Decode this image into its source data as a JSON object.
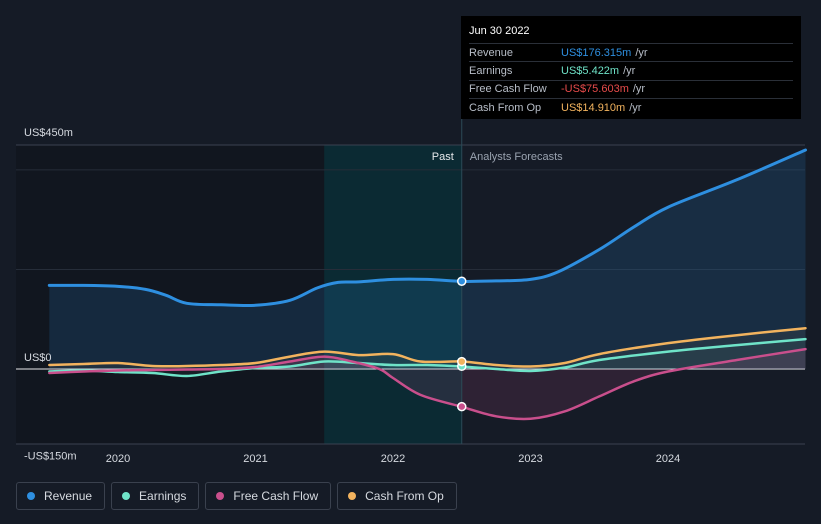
{
  "tooltip": {
    "date": "Jun 30 2022",
    "rows": [
      {
        "label": "Revenue",
        "value": "US$176.315m",
        "unit": "/yr",
        "color": "#2e8fe0"
      },
      {
        "label": "Earnings",
        "value": "US$5.422m",
        "unit": "/yr",
        "color": "#6fe3c8"
      },
      {
        "label": "Free Cash Flow",
        "value": "-US$75.603m",
        "unit": "/yr",
        "color": "#e84b4b"
      },
      {
        "label": "Cash From Op",
        "value": "US$14.910m",
        "unit": "/yr",
        "color": "#f2b35e"
      }
    ]
  },
  "legend": [
    {
      "label": "Revenue",
      "color": "#2e8fe0"
    },
    {
      "label": "Earnings",
      "color": "#6fe3c8"
    },
    {
      "label": "Free Cash Flow",
      "color": "#c94f8c"
    },
    {
      "label": "Cash From Op",
      "color": "#f2b35e"
    }
  ],
  "chart_data": {
    "type": "line",
    "title": "",
    "xlabel": "",
    "ylabel": "",
    "x_ticks": [
      "2020",
      "2021",
      "2022",
      "2023",
      "2024"
    ],
    "y_tick_labels": [
      "US$450m",
      "US$0",
      "-US$150m"
    ],
    "ylim": [
      -150,
      450
    ],
    "xlim": [
      2019.5,
      2025.0
    ],
    "past_label": "Past",
    "forecast_label": "Analysts Forecasts",
    "past_highlight_range": [
      2021.5,
      2022.5
    ],
    "divider_x": 2022.5,
    "series": [
      {
        "name": "Revenue",
        "color": "#2e8fe0",
        "x": [
          2019.5,
          2019.75,
          2020.0,
          2020.2,
          2020.35,
          2020.5,
          2020.75,
          2021.0,
          2021.25,
          2021.45,
          2021.6,
          2021.75,
          2022.0,
          2022.25,
          2022.5,
          2022.75,
          2023.0,
          2023.2,
          2023.5,
          2023.75,
          2024.0,
          2024.5,
          2025.0
        ],
        "y": [
          168,
          168,
          166,
          160,
          148,
          132,
          129,
          128,
          138,
          163,
          174,
          175,
          180,
          180,
          176,
          177,
          180,
          195,
          240,
          285,
          325,
          380,
          440
        ]
      },
      {
        "name": "Earnings",
        "color": "#6fe3c8",
        "x": [
          2019.5,
          2019.75,
          2020.0,
          2020.25,
          2020.5,
          2020.75,
          2021.0,
          2021.25,
          2021.5,
          2021.75,
          2022.0,
          2022.25,
          2022.5,
          2022.75,
          2023.0,
          2023.25,
          2023.5,
          2024.0,
          2024.5,
          2025.0
        ],
        "y": [
          -5,
          -3,
          -6,
          -8,
          -14,
          -5,
          2,
          5,
          15,
          12,
          8,
          8,
          5,
          0,
          -4,
          3,
          18,
          35,
          48,
          60
        ]
      },
      {
        "name": "Free Cash Flow",
        "color": "#c94f8c",
        "x": [
          2019.5,
          2019.75,
          2020.0,
          2020.25,
          2020.5,
          2020.75,
          2021.0,
          2021.25,
          2021.5,
          2021.7,
          2021.9,
          2022.0,
          2022.2,
          2022.5,
          2022.75,
          2023.0,
          2023.25,
          2023.5,
          2023.75,
          2024.0,
          2024.5,
          2025.0
        ],
        "y": [
          -8,
          -5,
          -3,
          -2,
          -1,
          0,
          4,
          15,
          25,
          15,
          0,
          -18,
          -52,
          -76,
          -95,
          -100,
          -85,
          -55,
          -25,
          -5,
          18,
          40
        ]
      },
      {
        "name": "Cash From Op",
        "color": "#f2b35e",
        "x": [
          2019.5,
          2019.75,
          2020.0,
          2020.25,
          2020.5,
          2020.75,
          2021.0,
          2021.25,
          2021.5,
          2021.75,
          2022.0,
          2022.2,
          2022.5,
          2022.75,
          2023.0,
          2023.25,
          2023.5,
          2024.0,
          2024.5,
          2025.0
        ],
        "y": [
          8,
          10,
          12,
          6,
          6,
          8,
          12,
          25,
          35,
          28,
          30,
          15,
          15,
          8,
          5,
          12,
          30,
          52,
          68,
          82
        ]
      }
    ],
    "highlight_points": [
      {
        "series": "Revenue",
        "x": 2022.5,
        "y": 176.315
      },
      {
        "series": "Earnings",
        "x": 2022.5,
        "y": 5.422
      },
      {
        "series": "Free Cash Flow",
        "x": 2022.5,
        "y": -75.603
      },
      {
        "series": "Cash From Op",
        "x": 2022.5,
        "y": 14.91
      }
    ]
  }
}
